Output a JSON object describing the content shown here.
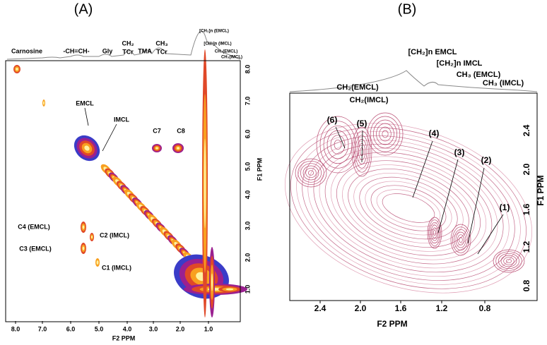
{
  "panels": [
    {
      "label": "(A)",
      "peaks_top": [
        "Carnosine",
        "-CH=CH-",
        "Gly",
        "CH₂",
        "TCr",
        "TMA",
        "CH₃",
        "TCr",
        "[CH₂]n (EMCL)",
        "[CH₂]n (IMCL)",
        "CH₃(EMCL)",
        "CH₃(IMCL)"
      ],
      "x_axis": {
        "title": "F2  PPM",
        "ticks": [
          "8.0",
          "7.0",
          "6.0",
          "5.0",
          "4.0",
          "3.0",
          "2.0",
          "1.0"
        ]
      },
      "y_axis": {
        "title": "F1  PPM",
        "ticks": [
          "8.0",
          "7.0",
          "6.0",
          "5.0",
          "4.0",
          "3.0",
          "2.0",
          "1.0"
        ]
      },
      "annotations": [
        "EMCL",
        "IMCL",
        "C7",
        "C8",
        "C4 (EMCL)",
        "C2 (IMCL)",
        "C3 (EMCL)",
        "C1 (IMCL)"
      ]
    },
    {
      "label": "(B)",
      "peaks_top": [
        "CH₂(EMCL)",
        "CH₂(IMCL)",
        "[CH₂]n EMCL",
        "[CH₂]n IMCL",
        "CH₃ (EMCL)",
        "CH₃ (IMCL)"
      ],
      "x_axis": {
        "title": "F2  PPM",
        "ticks": [
          "2.4",
          "2.0",
          "1.6",
          "1.2",
          "0.8"
        ]
      },
      "y_axis": {
        "title": "F1  PPM",
        "ticks": [
          "2.4",
          "2.0",
          "1.6",
          "1.2",
          "0.8"
        ]
      },
      "annotations": [
        "(6)",
        "(5)",
        "(4)",
        "(3)",
        "(2)",
        "(1)"
      ]
    }
  ]
}
